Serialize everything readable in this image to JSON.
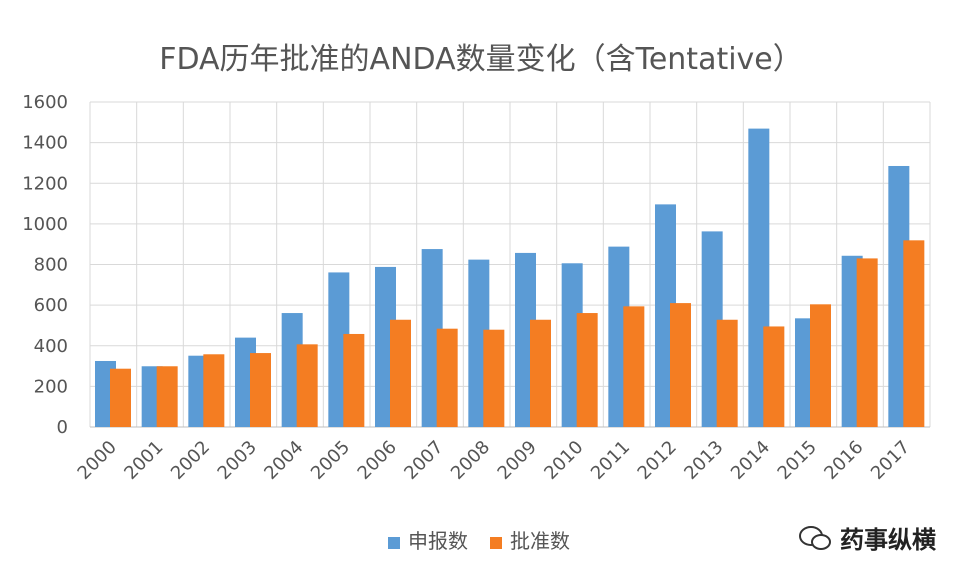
{
  "chart_data": {
    "type": "bar",
    "title": "FDA历年批准的ANDA数量变化（含Tentative）",
    "xlabel": "",
    "ylabel": "",
    "ylim": [
      0,
      1600
    ],
    "yticks": [
      0,
      200,
      400,
      600,
      800,
      1000,
      1200,
      1400,
      1600
    ],
    "grid": true,
    "legend_position": "bottom",
    "categories": [
      "2000",
      "2001",
      "2002",
      "2003",
      "2004",
      "2005",
      "2006",
      "2007",
      "2008",
      "2009",
      "2010",
      "2011",
      "2012",
      "2013",
      "2014",
      "2015",
      "2016",
      "2017"
    ],
    "series": [
      {
        "name": "申报数",
        "color": "#5b9bd5",
        "values": [
          325,
          299,
          351,
          440,
          561,
          761,
          788,
          876,
          824,
          857,
          806,
          888,
          1096,
          963,
          1469,
          535,
          843,
          1285
        ]
      },
      {
        "name": "批准数",
        "color": "#f47d22",
        "values": [
          287,
          299,
          358,
          364,
          407,
          458,
          528,
          484,
          479,
          528,
          561,
          594,
          610,
          528,
          495,
          604,
          830,
          919
        ]
      }
    ]
  },
  "watermark": {
    "text": "药事纵横",
    "icon": "wechat-icon"
  }
}
